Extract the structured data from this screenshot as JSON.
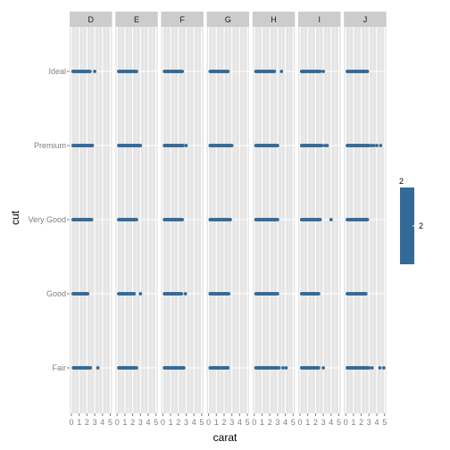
{
  "chart_data": {
    "type": "scatter",
    "xlabel": "carat",
    "ylabel": "cut",
    "xlim": [
      0,
      5
    ],
    "x_ticks": [
      "0",
      "1",
      "2",
      "3",
      "4",
      "5"
    ],
    "y_categories": [
      "Ideal",
      "Premium",
      "Very Good",
      "Good",
      "Fair"
    ],
    "facet_variable": "color",
    "facets": [
      {
        "label": "D",
        "ranges": {
          "Ideal": [
            0.2,
            2.4
          ],
          "Premium": [
            0.2,
            2.7
          ],
          "Very Good": [
            0.2,
            2.6
          ],
          "Good": [
            0.2,
            2.1
          ],
          "Fair": [
            0.25,
            2.5
          ]
        },
        "outliers": {
          "Ideal": [
            3.0
          ],
          "Premium": [],
          "Very Good": [],
          "Good": [],
          "Fair": [
            3.4
          ]
        }
      },
      {
        "label": "E",
        "ranges": {
          "Ideal": [
            0.2,
            2.5
          ],
          "Premium": [
            0.2,
            3.0
          ],
          "Very Good": [
            0.2,
            2.5
          ],
          "Good": [
            0.2,
            2.2
          ],
          "Fair": [
            0.2,
            2.5
          ]
        },
        "outliers": {
          "Ideal": [],
          "Premium": [],
          "Very Good": [],
          "Good": [
            3.0
          ],
          "Fair": []
        }
      },
      {
        "label": "F",
        "ranges": {
          "Ideal": [
            0.2,
            2.5
          ],
          "Premium": [
            0.2,
            2.6
          ],
          "Very Good": [
            0.2,
            2.5
          ],
          "Good": [
            0.2,
            2.4
          ],
          "Fair": [
            0.2,
            2.7
          ]
        },
        "outliers": {
          "Ideal": [],
          "Premium": [
            3.0
          ],
          "Very Good": [],
          "Good": [
            2.9
          ],
          "Fair": []
        }
      },
      {
        "label": "G",
        "ranges": {
          "Ideal": [
            0.2,
            2.5
          ],
          "Premium": [
            0.2,
            3.0
          ],
          "Very Good": [
            0.2,
            2.8
          ],
          "Good": [
            0.2,
            2.6
          ],
          "Fair": [
            0.2,
            2.5
          ]
        },
        "outliers": {
          "Ideal": [],
          "Premium": [],
          "Very Good": [],
          "Good": [],
          "Fair": []
        }
      },
      {
        "label": "H",
        "ranges": {
          "Ideal": [
            0.2,
            2.6
          ],
          "Premium": [
            0.2,
            3.0
          ],
          "Very Good": [
            0.2,
            3.0
          ],
          "Good": [
            0.2,
            3.0
          ],
          "Fair": [
            0.2,
            3.0
          ]
        },
        "outliers": {
          "Ideal": [
            3.5
          ],
          "Premium": [],
          "Very Good": [],
          "Good": [],
          "Fair": [
            3.2,
            3.7,
            4.1
          ]
        }
      },
      {
        "label": "I",
        "ranges": {
          "Ideal": [
            0.2,
            2.6
          ],
          "Premium": [
            0.2,
            2.8
          ],
          "Very Good": [
            0.2,
            2.6
          ],
          "Good": [
            0.2,
            2.4
          ],
          "Fair": [
            0.2,
            2.4
          ]
        },
        "outliers": {
          "Ideal": [
            3.0
          ],
          "Premium": [
            3.2,
            3.5
          ],
          "Very Good": [
            4.0
          ],
          "Good": [],
          "Fair": [
            3.0
          ]
        }
      },
      {
        "label": "J",
        "ranges": {
          "Ideal": [
            0.2,
            2.8
          ],
          "Premium": [
            0.2,
            3.0
          ],
          "Very Good": [
            0.2,
            2.8
          ],
          "Good": [
            0.2,
            2.6
          ],
          "Fair": [
            0.2,
            3.0
          ]
        },
        "outliers": {
          "Ideal": [],
          "Premium": [
            3.3,
            3.6,
            4.0,
            4.5
          ],
          "Very Good": [],
          "Good": [],
          "Fair": [
            3.4,
            4.4,
            4.9
          ]
        }
      }
    ],
    "point_color": "#336a98",
    "grid": true,
    "legend": {
      "title": "2",
      "label": "2",
      "placement": "right",
      "color": "#336a98"
    }
  },
  "colors": {
    "panel_background": "#e5e5e5",
    "grid_major": "#ffffff",
    "grid_minor": "#f2f2f2",
    "strip_background": "#cccccc",
    "tick_text": "#7f7f7f"
  }
}
